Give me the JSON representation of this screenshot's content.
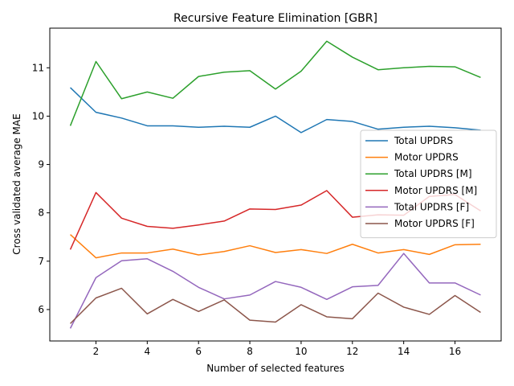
{
  "chart_data": {
    "type": "line",
    "title": "Recursive Feature Elimination [GBR]",
    "xlabel": "Number of selected features",
    "ylabel": "Cross validated average MAE",
    "xlim": [
      0.2,
      17.8
    ],
    "ylim": [
      5.35,
      11.82
    ],
    "xticks": [
      2,
      4,
      6,
      8,
      10,
      12,
      14,
      16
    ],
    "yticks": [
      6,
      7,
      8,
      9,
      10,
      11
    ],
    "grid": false,
    "legend_position": "center-right",
    "x": [
      1,
      2,
      3,
      4,
      5,
      6,
      7,
      8,
      9,
      10,
      11,
      12,
      13,
      14,
      15,
      16,
      17
    ],
    "series": [
      {
        "name": "Total UPDRS",
        "color": "#1f77b4",
        "values": [
          10.59,
          10.08,
          9.96,
          9.8,
          9.8,
          9.77,
          9.79,
          9.77,
          10.0,
          9.66,
          9.93,
          9.89,
          9.73,
          9.77,
          9.79,
          9.76,
          9.71
        ]
      },
      {
        "name": "Motor UPDRS",
        "color": "#ff7f0e",
        "values": [
          7.55,
          7.07,
          7.17,
          7.17,
          7.25,
          7.13,
          7.2,
          7.32,
          7.18,
          7.24,
          7.16,
          7.35,
          7.17,
          7.24,
          7.14,
          7.34,
          7.35
        ]
      },
      {
        "name": "Total UPDRS [M]",
        "color": "#2ca02c",
        "values": [
          9.8,
          11.13,
          10.36,
          10.5,
          10.37,
          10.82,
          10.91,
          10.94,
          10.56,
          10.93,
          11.55,
          11.22,
          10.96,
          11.0,
          11.03,
          11.02,
          10.8
        ]
      },
      {
        "name": "Motor UPDRS [M]",
        "color": "#d62728",
        "values": [
          7.24,
          8.42,
          7.89,
          7.72,
          7.68,
          7.75,
          7.83,
          8.08,
          8.07,
          8.16,
          8.46,
          7.91,
          7.96,
          7.95,
          8.34,
          8.38,
          8.04
        ]
      },
      {
        "name": "Total UPDRS [F]",
        "color": "#9467bd",
        "values": [
          5.61,
          6.66,
          7.01,
          7.05,
          6.79,
          6.46,
          6.22,
          6.3,
          6.58,
          6.46,
          6.21,
          6.47,
          6.5,
          7.16,
          6.55,
          6.55,
          6.3
        ]
      },
      {
        "name": "Motor UPDRS [F]",
        "color": "#8c564b",
        "values": [
          5.71,
          6.24,
          6.44,
          5.91,
          6.21,
          5.96,
          6.2,
          5.78,
          5.74,
          6.1,
          5.85,
          5.81,
          6.34,
          6.05,
          5.9,
          6.29,
          5.94
        ]
      }
    ]
  }
}
